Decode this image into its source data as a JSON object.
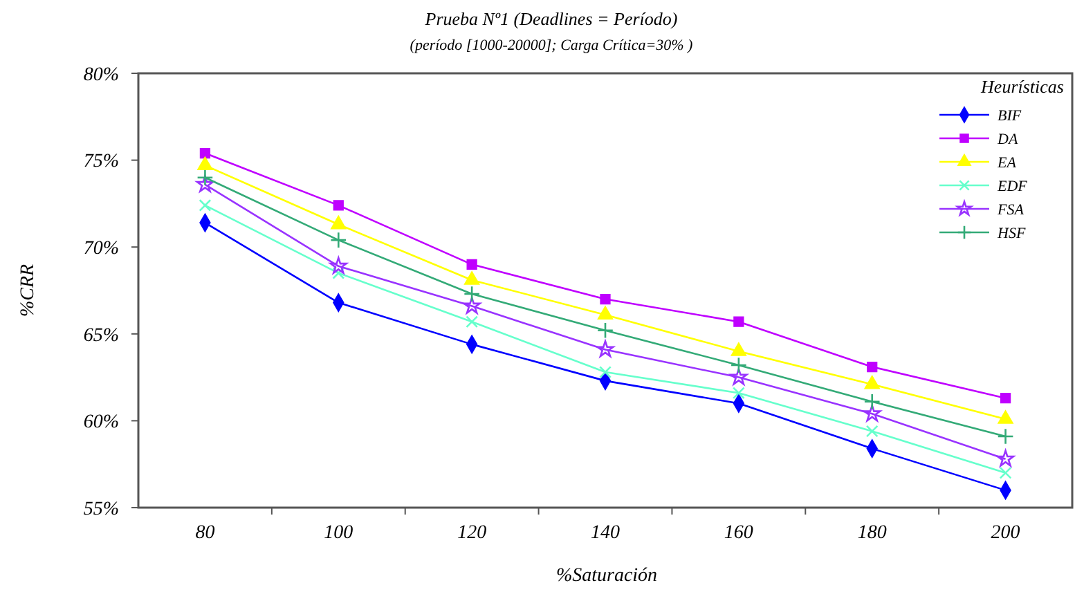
{
  "chart_data": {
    "type": "line",
    "title": "Prueba Nº1 (Deadlines = Período)",
    "subtitle": "(período  [1000-20000]; Carga Crítica=30% )",
    "xlabel": "%Saturación",
    "ylabel": "%CRR",
    "legend_title": "Heurísticas",
    "legend": "top right",
    "grid": false,
    "categories": [
      "80",
      "100",
      "120",
      "140",
      "160",
      "180",
      "200"
    ],
    "ylim": [
      55,
      80
    ],
    "yticks": [
      {
        "value": 55,
        "label": "55%"
      },
      {
        "value": 60,
        "label": "60%"
      },
      {
        "value": 65,
        "label": "65%"
      },
      {
        "value": 70,
        "label": "70%"
      },
      {
        "value": 75,
        "label": "75%"
      },
      {
        "value": 80,
        "label": "80%"
      }
    ],
    "series": [
      {
        "name": "BIF",
        "color": "#0000ff",
        "marker": "diamond",
        "values": [
          71.4,
          66.8,
          64.4,
          62.3,
          61.0,
          58.4,
          56.0
        ]
      },
      {
        "name": "DA",
        "color": "#bf00ff",
        "marker": "square",
        "values": [
          75.4,
          72.4,
          69.0,
          67.0,
          65.7,
          63.1,
          61.3
        ]
      },
      {
        "name": "EA",
        "color": "#ffff00",
        "marker": "triangle",
        "values": [
          74.7,
          71.3,
          68.1,
          66.1,
          64.0,
          62.1,
          60.1
        ]
      },
      {
        "name": "EDF",
        "color": "#66ffcc",
        "marker": "cross",
        "values": [
          72.4,
          68.5,
          65.7,
          62.8,
          61.6,
          59.4,
          57.0
        ]
      },
      {
        "name": "FSA",
        "color": "#9933ff",
        "marker": "star",
        "values": [
          73.6,
          68.9,
          66.6,
          64.1,
          62.5,
          60.4,
          57.8
        ]
      },
      {
        "name": "HSF",
        "color": "#33aa77",
        "marker": "plus",
        "values": [
          74.0,
          70.4,
          67.3,
          65.2,
          63.2,
          61.1,
          59.1
        ]
      }
    ]
  }
}
